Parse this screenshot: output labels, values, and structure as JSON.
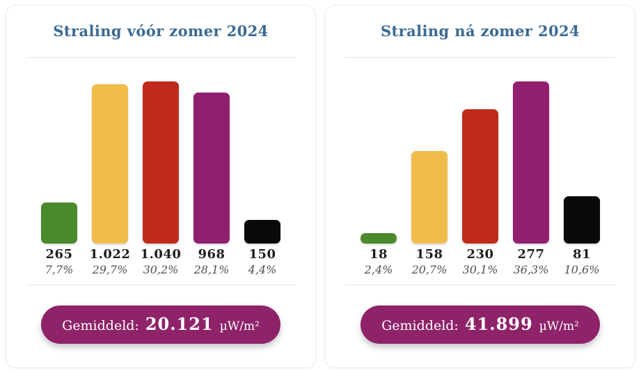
{
  "chart_data": [
    {
      "type": "bar",
      "title": "Straling vóór zomer 2024",
      "values": [
        265,
        1022,
        1040,
        968,
        150
      ],
      "value_labels": [
        "265",
        "1.022",
        "1.040",
        "968",
        "150"
      ],
      "percent_labels": [
        "7,7%",
        "29,7%",
        "30,2%",
        "28,1%",
        "4,4%"
      ],
      "bar_color_names": [
        "green",
        "yellow",
        "red",
        "purple",
        "black"
      ],
      "bar_colors": [
        "#4a8a2c",
        "#f0bd4b",
        "#c02a1c",
        "#911f70",
        "#0a0a0a"
      ],
      "average_label": "Gemiddeld:",
      "average_value": "20.121",
      "average_unit": "µW/m²",
      "ylim": [
        0,
        1040
      ],
      "grid": false,
      "legend": "none"
    },
    {
      "type": "bar",
      "title": "Straling ná zomer 2024",
      "values": [
        18,
        158,
        230,
        277,
        81
      ],
      "value_labels": [
        "18",
        "158",
        "230",
        "277",
        "81"
      ],
      "percent_labels": [
        "2,4%",
        "20,7%",
        "30,1%",
        "36,3%",
        "10,6%"
      ],
      "bar_color_names": [
        "green",
        "yellow",
        "red",
        "purple",
        "black"
      ],
      "bar_colors": [
        "#4a8a2c",
        "#f0bd4b",
        "#c02a1c",
        "#911f70",
        "#0a0a0a"
      ],
      "average_label": "Gemiddeld:",
      "average_value": "41.899",
      "average_unit": "µW/m²",
      "ylim": [
        0,
        277
      ],
      "grid": false,
      "legend": "none"
    }
  ],
  "style": {
    "title_color": "#3a6a93",
    "badge_color": "#8e2369",
    "percent_text_color": "#4f4f4f",
    "value_text_color": "#1d1d1d"
  }
}
